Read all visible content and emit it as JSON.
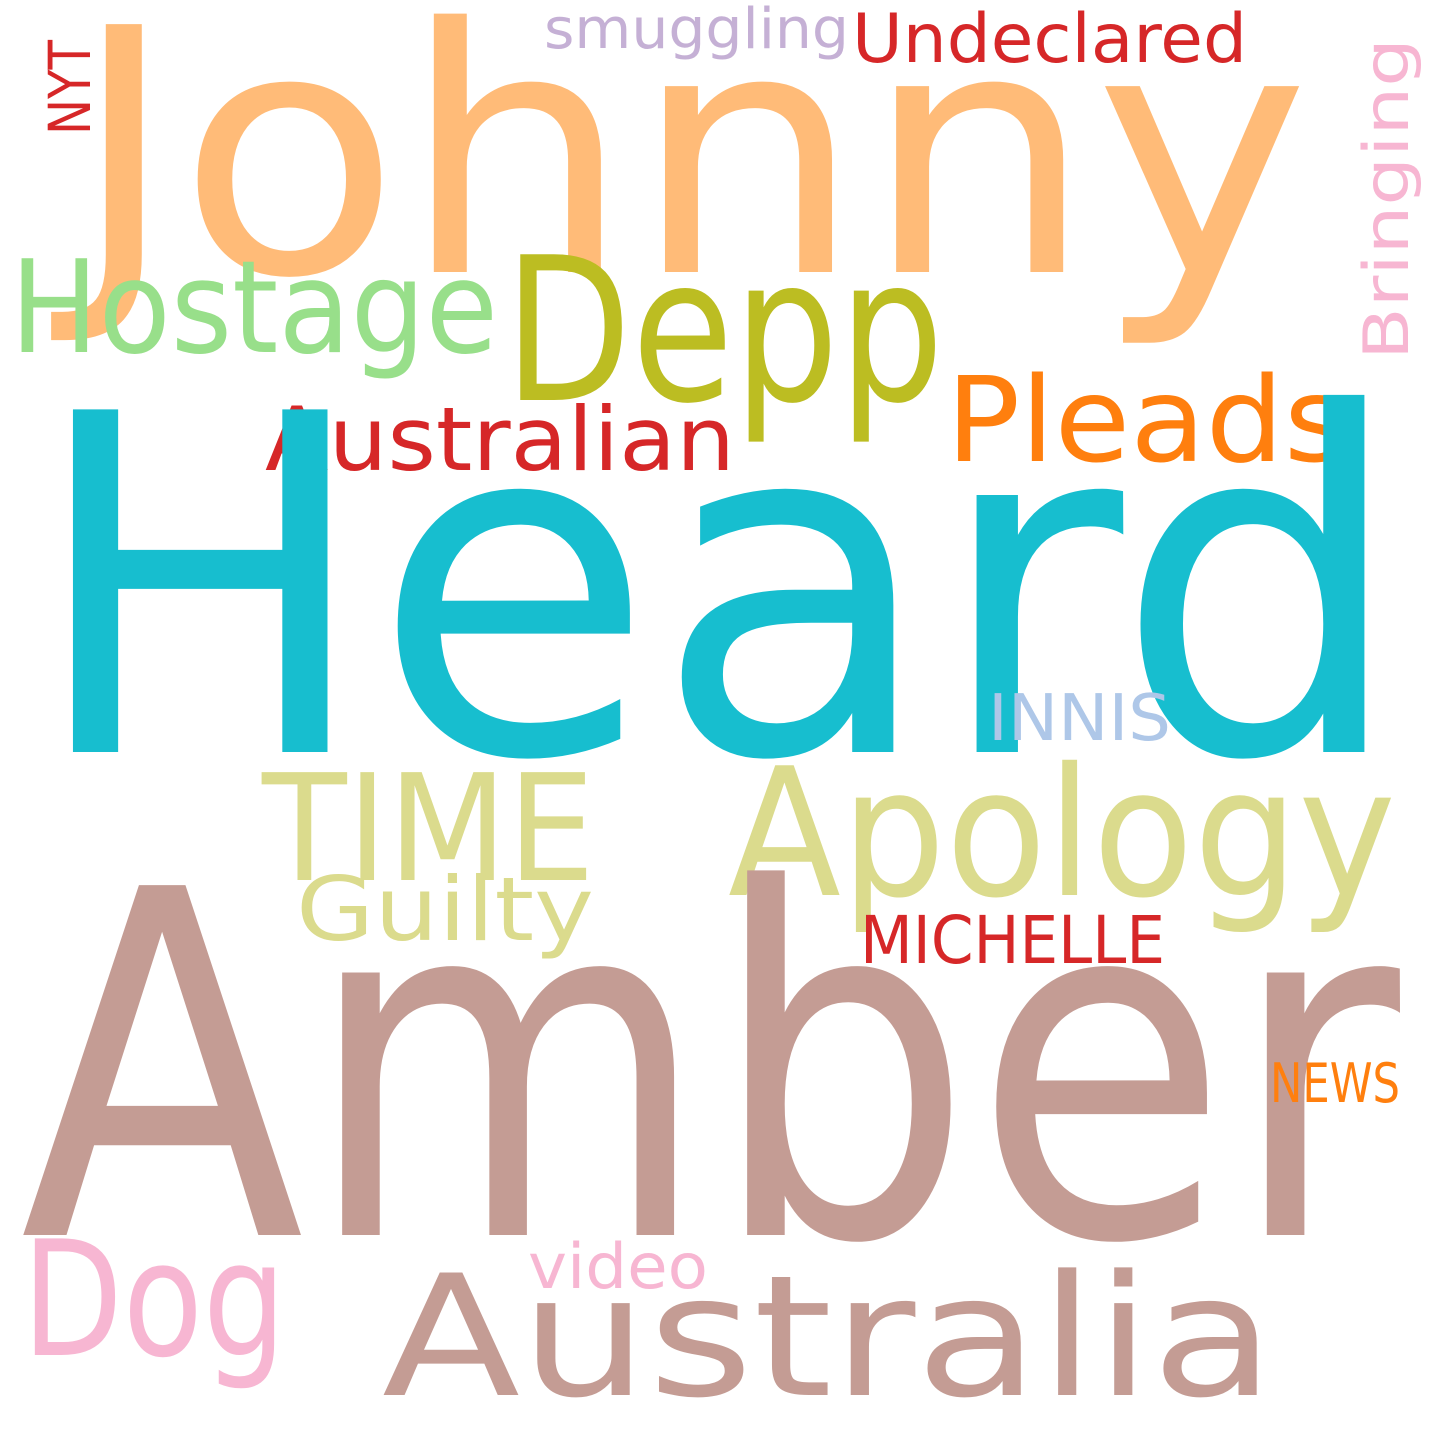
{
  "words": [
    {
      "text": "Johnny",
      "color": "#ffbb78"
    },
    {
      "text": "smuggling",
      "color": "#c5b0d5"
    },
    {
      "text": "Undeclared",
      "color": "#d62728"
    },
    {
      "text": "NYT",
      "color": "#d62728"
    },
    {
      "text": "Bringing",
      "color": "#f7b6d2"
    },
    {
      "text": "Hostage",
      "color": "#98df8a"
    },
    {
      "text": "Depp",
      "color": "#bcbd22"
    },
    {
      "text": "Pleads",
      "color": "#ff7f0e"
    },
    {
      "text": "Australian",
      "color": "#d62728"
    },
    {
      "text": "Heard",
      "color": "#17becf"
    },
    {
      "text": "INNIS",
      "color": "#aec7e8"
    },
    {
      "text": "TIME",
      "color": "#dbdb8d"
    },
    {
      "text": "Apology",
      "color": "#dbdb8d"
    },
    {
      "text": "Guilty",
      "color": "#dbdb8d"
    },
    {
      "text": "MICHELLE",
      "color": "#d62728"
    },
    {
      "text": "Amber",
      "color": "#c49c94"
    },
    {
      "text": "NEWS",
      "color": "#ff7f0e"
    },
    {
      "text": "video",
      "color": "#f7b6d2"
    },
    {
      "text": "Dog",
      "color": "#f7b6d2"
    },
    {
      "text": "Australia",
      "color": "#c49c94"
    }
  ]
}
